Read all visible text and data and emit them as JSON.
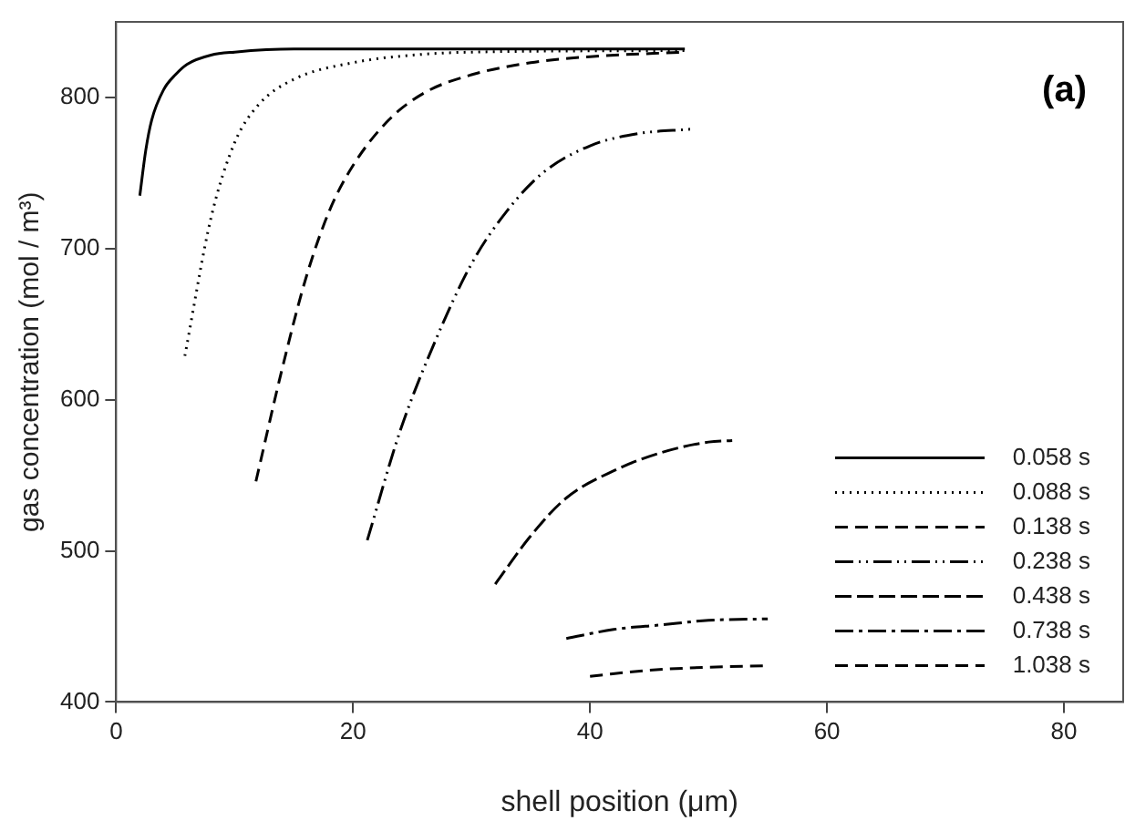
{
  "chart_data": {
    "type": "line",
    "xlabel": "shell position (μm)",
    "ylabel": "gas concentration (mol / m³)",
    "annotations": [
      "(a)"
    ],
    "xlim": [
      0,
      85
    ],
    "xticks": [
      0,
      20,
      40,
      60,
      80
    ],
    "ylim": [
      400,
      850
    ],
    "yticks": [
      400,
      500,
      600,
      700,
      800
    ],
    "grid": false,
    "legend": "bottom right",
    "marker": "none",
    "series": [
      {
        "name": "0.058 s",
        "color": "#000000",
        "line_style": "solid",
        "x": [
          2,
          2.5,
          3,
          4,
          5,
          6,
          8,
          10,
          15,
          48
        ],
        "values": [
          735,
          765,
          785,
          805,
          815,
          822,
          828,
          830,
          832,
          832
        ]
      },
      {
        "name": "0.088 s",
        "color": "#000000",
        "line_style": "dotted",
        "x": [
          5.8,
          8,
          10,
          12,
          15,
          20,
          25,
          30,
          48
        ],
        "values": [
          629,
          720,
          770,
          795,
          812,
          823,
          828,
          830,
          831
        ]
      },
      {
        "name": "0.138 s",
        "color": "#000000",
        "line_style": "dashed",
        "x": [
          11.8,
          14,
          16,
          18,
          20,
          23,
          26,
          30,
          35,
          40,
          48
        ],
        "values": [
          546,
          620,
          680,
          725,
          755,
          785,
          803,
          815,
          823,
          827,
          830
        ]
      },
      {
        "name": "0.238 s",
        "color": "#000000",
        "line_style": "dashdotdot",
        "x": [
          21.2,
          24,
          27,
          30,
          33,
          36,
          40,
          44,
          48.5
        ],
        "values": [
          507,
          580,
          640,
          690,
          725,
          750,
          768,
          776,
          779
        ]
      },
      {
        "name": "0.438 s",
        "color": "#000000",
        "line_style": "longdash",
        "x": [
          32,
          35,
          38,
          42,
          46,
          50,
          52
        ],
        "values": [
          478,
          510,
          535,
          553,
          565,
          572,
          573
        ]
      },
      {
        "name": "0.738 s",
        "color": "#000000",
        "line_style": "dashdot",
        "x": [
          38,
          42,
          46,
          50,
          55
        ],
        "values": [
          442,
          448,
          451,
          454,
          455
        ]
      },
      {
        "name": "1.038 s",
        "color": "#000000",
        "line_style": "dashed",
        "x": [
          40,
          45,
          50,
          55
        ],
        "values": [
          417,
          421,
          423,
          424
        ]
      }
    ]
  }
}
